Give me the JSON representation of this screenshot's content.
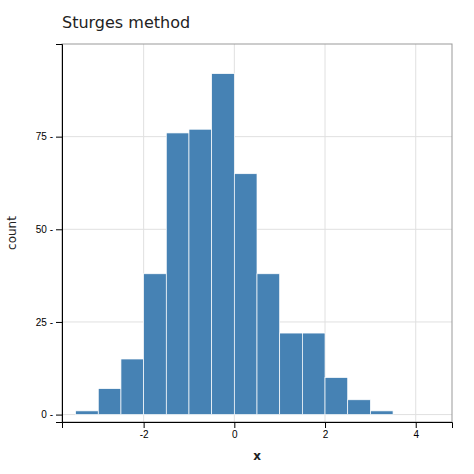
{
  "chart_data": {
    "type": "histogram",
    "title": "Sturges method",
    "xlabel": "x",
    "ylabel": "count",
    "bins": [
      -3.5,
      -3.0,
      -2.5,
      -2.0,
      -1.5,
      -1.0,
      -0.5,
      0.0,
      0.5,
      1.0,
      1.5,
      2.0,
      2.5,
      3.0,
      3.5,
      4.0
    ],
    "values": [
      1,
      7,
      15,
      38,
      76,
      77,
      92,
      65,
      38,
      22,
      22,
      10,
      4,
      1,
      0
    ],
    "xlim": [
      -3.8,
      4.8
    ],
    "ylim": [
      -2,
      100
    ],
    "xticks": [
      -2,
      0,
      2,
      4
    ],
    "yticks": [
      {
        "value": 0,
        "label": "0 -"
      },
      {
        "value": 25,
        "label": "25 -"
      },
      {
        "value": 50,
        "label": "50 -"
      },
      {
        "value": 75,
        "label": "75 -"
      }
    ],
    "grid": true
  }
}
